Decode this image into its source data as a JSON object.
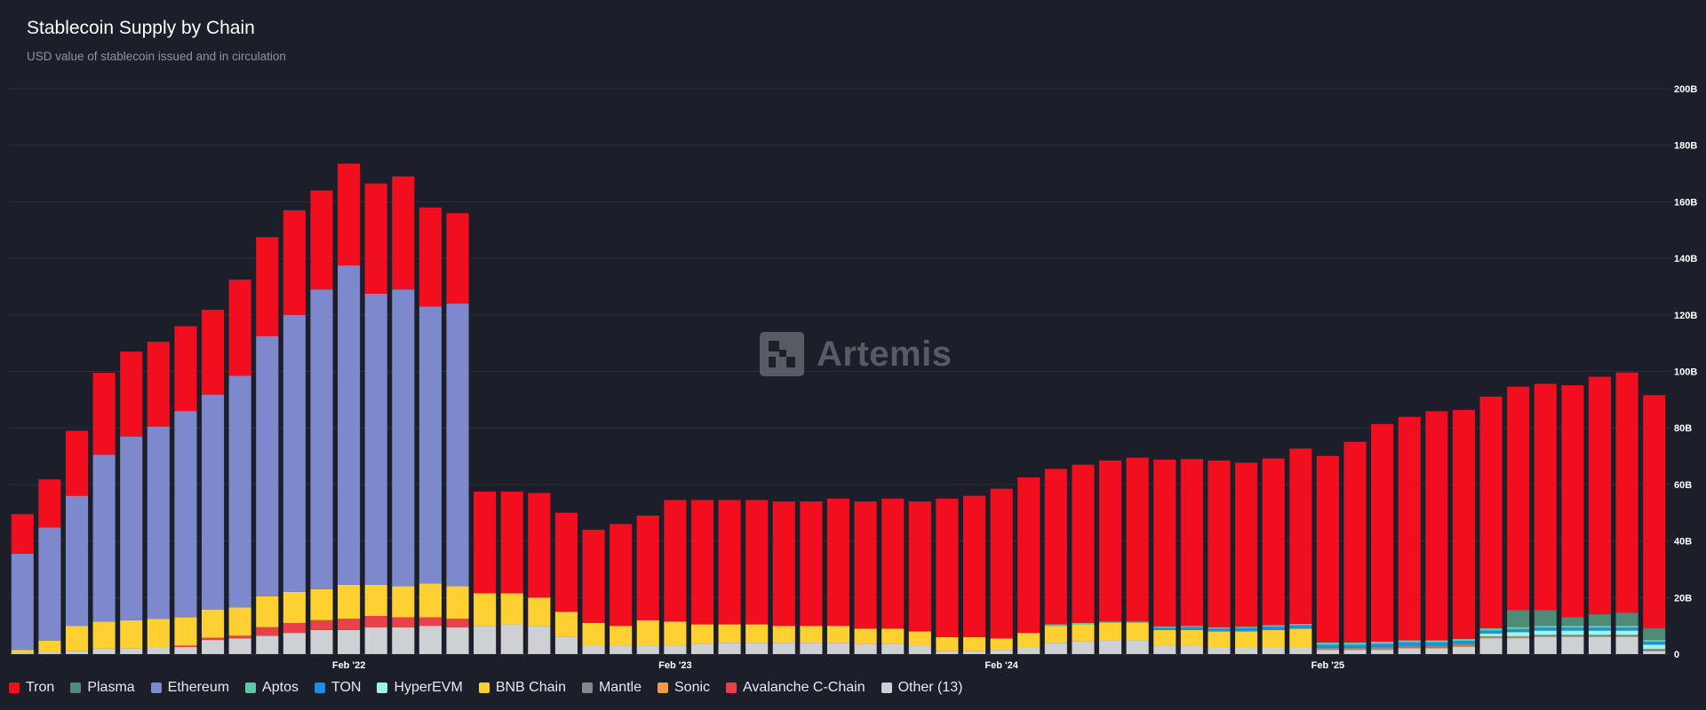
{
  "header": {
    "title": "Stablecoin Supply by Chain",
    "subtitle": "USD value of stablecoin issued and in circulation"
  },
  "watermark": {
    "text": "Artemis"
  },
  "legend": {
    "items": [
      {
        "label": "Tron",
        "color": "#f10f1f"
      },
      {
        "label": "Plasma",
        "color": "#4e8c78"
      },
      {
        "label": "Ethereum",
        "color": "#7e88cc"
      },
      {
        "label": "Aptos",
        "color": "#5ec9a6"
      },
      {
        "label": "TON",
        "color": "#1e8fe0"
      },
      {
        "label": "HyperEVM",
        "color": "#9ff5e3"
      },
      {
        "label": "BNB Chain",
        "color": "#ffd031"
      },
      {
        "label": "Mantle",
        "color": "#888888"
      },
      {
        "label": "Sonic",
        "color": "#f2994a"
      },
      {
        "label": "Avalanche C-Chain",
        "color": "#e8414a"
      },
      {
        "label": "Other (13)",
        "color": "#cfd0d4"
      }
    ]
  },
  "chart_data": {
    "type": "bar",
    "stacked": true,
    "title": "Stablecoin Supply by Chain",
    "subtitle": "USD value of stablecoin issued and in circulation",
    "ylim": [
      0,
      200
    ],
    "y_unit": "B",
    "y_ticks": [
      "0",
      "20B",
      "40B",
      "60B",
      "80B",
      "100B",
      "120B",
      "140B",
      "160B",
      "180B",
      "200B"
    ],
    "x_tick_labels": [
      {
        "label": "Feb '22",
        "index": 12
      },
      {
        "label": "Feb '23",
        "index": 24
      },
      {
        "label": "Feb '24",
        "index": 36
      },
      {
        "label": "Feb '25",
        "index": 48
      }
    ],
    "grid": true,
    "legend_position": "bottom",
    "series_order": [
      "Other (13)",
      "Sonic",
      "Avalanche C-Chain",
      "Mantle",
      "BNB Chain",
      "HyperEVM",
      "TON",
      "Aptos",
      "Plasma",
      "Ethereum",
      "Tron"
    ],
    "series": [
      {
        "name": "Other (13)",
        "values": [
          0.5,
          0.8,
          1,
          2,
          2,
          2.5,
          2.5,
          5,
          5.5,
          6.5,
          7.5,
          8.5,
          8.5,
          9.5,
          9.5,
          10,
          9.5,
          10,
          10.5,
          10,
          6,
          3,
          3,
          3,
          3,
          3.5,
          4,
          4,
          4,
          4,
          4,
          3.5,
          3.5,
          3,
          1,
          1,
          1.5,
          2.5,
          4,
          4.5,
          5,
          5,
          3,
          3,
          2.5,
          2.5,
          2.5,
          2.5,
          1.5,
          1.5,
          1.5,
          2,
          2,
          2.5,
          5.5,
          5.5,
          6,
          6,
          6,
          6,
          1
        ]
      },
      {
        "name": "Sonic",
        "values": [
          0,
          0,
          0,
          0,
          0,
          0,
          0,
          0,
          0,
          0,
          0,
          0,
          0,
          0,
          0,
          0,
          0,
          0,
          0,
          0,
          0,
          0,
          0,
          0,
          0,
          0,
          0,
          0,
          0,
          0,
          0,
          0,
          0,
          0,
          0,
          0,
          0,
          0,
          0,
          0,
          0,
          0,
          0,
          0,
          0,
          0,
          0,
          0,
          0.3,
          0.3,
          0.3,
          0.3,
          0.3,
          0.3,
          0.3,
          0.3,
          0.3,
          0.3,
          0.3,
          0.3,
          0.3
        ]
      },
      {
        "name": "Avalanche C-Chain",
        "values": [
          0,
          0,
          0,
          0,
          0,
          0,
          0.5,
          0.8,
          1,
          3,
          3.5,
          3.5,
          4,
          4,
          3.5,
          3,
          3,
          0,
          0,
          0,
          0,
          0,
          0,
          0,
          0,
          0,
          0,
          0,
          0,
          0,
          0,
          0,
          0,
          0,
          0,
          0,
          0,
          0,
          0,
          0,
          0,
          0,
          0,
          0,
          0,
          0,
          0,
          0,
          0,
          0,
          0,
          0,
          0,
          0,
          0,
          0,
          0,
          0,
          0,
          0,
          0
        ]
      },
      {
        "name": "Mantle",
        "values": [
          0,
          0,
          0,
          0,
          0,
          0,
          0,
          0,
          0,
          0,
          0,
          0,
          0,
          0,
          0,
          0,
          0,
          0,
          0,
          0,
          0,
          0,
          0,
          0,
          0,
          0,
          0,
          0,
          0,
          0,
          0,
          0,
          0,
          0,
          0,
          0,
          0,
          0,
          0,
          0,
          0,
          0,
          0,
          0,
          0,
          0,
          0,
          0,
          0.5,
          0.5,
          0.8,
          0.8,
          0.8,
          0.8,
          0.5,
          0.5,
          0.5,
          0.5,
          0.5,
          0.5,
          0.5
        ]
      },
      {
        "name": "BNB Chain",
        "values": [
          1,
          4,
          9,
          9.5,
          10,
          10,
          10,
          10,
          10,
          11,
          11,
          11,
          12,
          11,
          11,
          12,
          11.5,
          11.5,
          11,
          10,
          9,
          8,
          7,
          9,
          8.5,
          7,
          6.5,
          6.5,
          6,
          6,
          6,
          5.5,
          5.5,
          5,
          5,
          5,
          4,
          5,
          6,
          6,
          6,
          6,
          5.5,
          5.5,
          5.5,
          5.5,
          6,
          6.5,
          0,
          0,
          0,
          0,
          0,
          0,
          0,
          0,
          0,
          0,
          0,
          0,
          0
        ]
      },
      {
        "name": "HyperEVM",
        "values": [
          0,
          0,
          0,
          0,
          0,
          0,
          0,
          0,
          0,
          0,
          0,
          0,
          0,
          0,
          0,
          0,
          0,
          0,
          0,
          0,
          0,
          0,
          0,
          0,
          0,
          0,
          0,
          0,
          0,
          0,
          0,
          0,
          0,
          0,
          0,
          0,
          0,
          0,
          0,
          0,
          0,
          0,
          0,
          0,
          0,
          0,
          0,
          0,
          0,
          0,
          0,
          0,
          0,
          0,
          1,
          1.5,
          1.5,
          1.5,
          1.5,
          1.5,
          1.5
        ]
      },
      {
        "name": "TON",
        "values": [
          0,
          0,
          0,
          0,
          0,
          0,
          0,
          0,
          0,
          0,
          0,
          0,
          0,
          0,
          0,
          0,
          0,
          0,
          0,
          0,
          0,
          0,
          0,
          0,
          0,
          0,
          0,
          0,
          0,
          0,
          0,
          0,
          0,
          0,
          0,
          0,
          0,
          0,
          0,
          0,
          0,
          0,
          0.8,
          1,
          1,
          1.2,
          1.2,
          1.2,
          1,
          1,
          1,
          1,
          1,
          1,
          1,
          1,
          1,
          1,
          1,
          1,
          1
        ]
      },
      {
        "name": "Aptos",
        "values": [
          0,
          0,
          0,
          0,
          0,
          0,
          0,
          0,
          0,
          0,
          0,
          0,
          0,
          0,
          0,
          0,
          0,
          0,
          0,
          0,
          0,
          0,
          0,
          0,
          0,
          0,
          0,
          0,
          0,
          0,
          0,
          0,
          0,
          0,
          0,
          0,
          0,
          0,
          0.5,
          0.5,
          0.5,
          0.5,
          0.5,
          0.5,
          0.5,
          0.5,
          0.5,
          0.5,
          0.8,
          0.8,
          0.8,
          0.8,
          0.8,
          0.8,
          0.8,
          0.8,
          0.8,
          0.8,
          0.8,
          0.8,
          0.8
        ]
      },
      {
        "name": "Plasma",
        "values": [
          0,
          0,
          0,
          0,
          0,
          0,
          0,
          0,
          0,
          0,
          0,
          0,
          0,
          0,
          0,
          0,
          0,
          0,
          0,
          0,
          0,
          0,
          0,
          0,
          0,
          0,
          0,
          0,
          0,
          0,
          0,
          0,
          0,
          0,
          0,
          0,
          0,
          0,
          0,
          0,
          0,
          0,
          0,
          0,
          0,
          0,
          0,
          0,
          0,
          0,
          0,
          0,
          0,
          0,
          0,
          6,
          5.5,
          3,
          4,
          4.5,
          4
        ]
      },
      {
        "name": "Ethereum",
        "values": [
          34,
          40,
          46,
          59,
          65,
          68,
          73,
          76,
          82,
          92,
          98,
          106,
          113,
          103,
          105,
          98,
          100,
          0,
          0,
          0,
          0,
          0,
          0,
          0,
          0,
          0,
          0,
          0,
          0,
          0,
          0,
          0,
          0,
          0,
          0,
          0,
          0,
          0,
          0,
          0,
          0,
          0,
          0,
          0,
          0,
          0,
          0,
          0,
          0,
          0,
          0,
          0,
          0,
          0,
          0,
          0,
          0,
          0,
          0,
          0,
          0
        ]
      },
      {
        "name": "Tron",
        "values": [
          14,
          17,
          23,
          29,
          30,
          30,
          30,
          30,
          34,
          35,
          37,
          35,
          36,
          39,
          40,
          35,
          32,
          36,
          36,
          37,
          35,
          33,
          36,
          37,
          43,
          44,
          44,
          44,
          44,
          44,
          45,
          45,
          46,
          46,
          49,
          50,
          53,
          55,
          55,
          56,
          57,
          58,
          59,
          59,
          59,
          58,
          59,
          62,
          66,
          71,
          77,
          79,
          81,
          81,
          82,
          79,
          80,
          82,
          84,
          85,
          82.5
        ]
      }
    ]
  }
}
